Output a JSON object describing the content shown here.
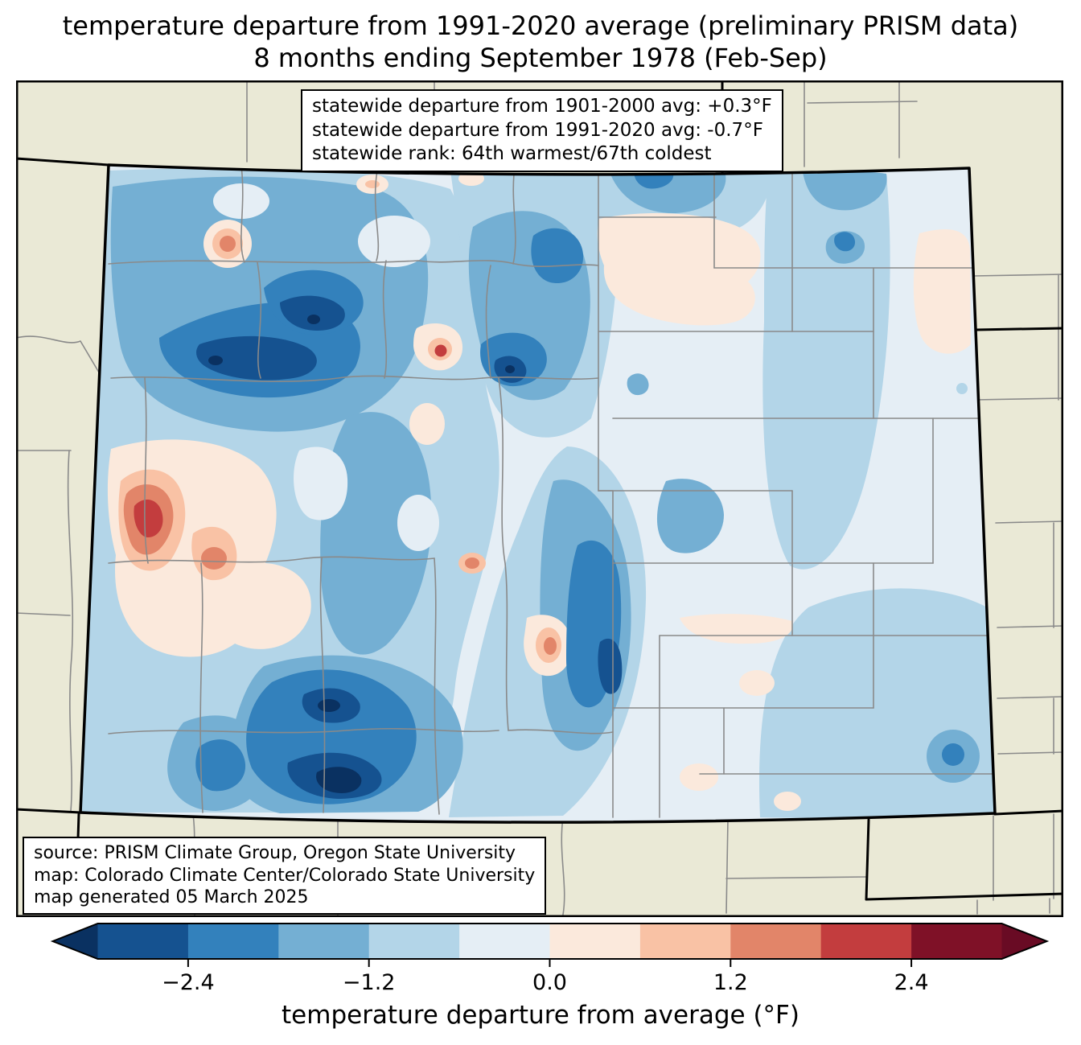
{
  "title": {
    "line1": "temperature departure from 1991-2020 average (preliminary PRISM data)",
    "line2": "8 months ending September 1978 (Feb-Sep)"
  },
  "stats_box": {
    "line1": "statewide departure from 1901-2000 avg: +0.3°F",
    "line2": "statewide departure from 1991-2020 avg: -0.7°F",
    "line3": "statewide rank: 64th warmest/67th coldest"
  },
  "source_box": {
    "line1": "source: PRISM Climate Group, Oregon State University",
    "line2": "map: Colorado Climate Center/Colorado State University",
    "line3": "map generated 05 March 2025"
  },
  "colorbar": {
    "label": "temperature departure from average (°F)",
    "range": [
      -3.0,
      3.0
    ],
    "bin_width": 0.6,
    "ticks": [
      {
        "value": -2.4,
        "label": "−2.4"
      },
      {
        "value": -1.2,
        "label": "−1.2"
      },
      {
        "value": 0.0,
        "label": "0.0"
      },
      {
        "value": 1.2,
        "label": "1.2"
      },
      {
        "value": 2.4,
        "label": "2.4"
      }
    ],
    "segments": [
      "#155290",
      "#3381bc",
      "#74afd3",
      "#b3d5e8",
      "#e5eef5",
      "#fbe9dc",
      "#f9c2a5",
      "#e28569",
      "#c33d3e",
      "#7f1127"
    ],
    "extend_low": "#0a3161",
    "extend_high": "#690b24"
  },
  "palette": {
    "extLo": "#0a3161",
    "b1": "#155290",
    "b2": "#3381bc",
    "b3": "#74afd3",
    "b4": "#b3d5e8",
    "b5": "#e5eef5",
    "b6": "#fbe9dc",
    "b7": "#f9c2a5",
    "b8": "#e28569",
    "b9": "#c33d3e",
    "b10": "#7f1127",
    "extHi": "#690b24",
    "beige": "#eae9d6",
    "county": "#8a8a8a",
    "border": "#000000"
  },
  "chart_data": {
    "type": "heatmap",
    "subtype": "geographic contour map (choropleth-style PRISM grid)",
    "region": "Colorado, USA (with neighboring state fringes)",
    "variable": "temperature departure from average (°F)",
    "baseline": "1991-2020 average",
    "period": "8 months ending September 1978 (Feb-Sep)",
    "colorbar_ticks": [
      -2.4,
      -1.2,
      0.0,
      1.2,
      2.4
    ],
    "colorbar_range": [
      -3.0,
      3.0
    ],
    "colorbar_bin_width": 0.6,
    "colorbar_extends_both_ends": true,
    "statewide_departure_from_1901_2000_avg_F": 0.3,
    "statewide_departure_from_1991_2020_avg_F": -0.7,
    "statewide_rank": "64th warmest/67th coldest",
    "notable_features": [
      "dark blue (< -2.4°F) cores over north-central and south-central (San Juan) mountains",
      "red/orange warm anomaly (+1.8 to +2.4°F) in west-central Colorado near Grand Junction/Delta",
      "small warm spot with red core in north-central Colorado",
      "mostly pale blue (-1.2 to 0°F) across eastern plains with scattered pale pink patches",
      "blue bullseye in far southeast corner"
    ]
  }
}
